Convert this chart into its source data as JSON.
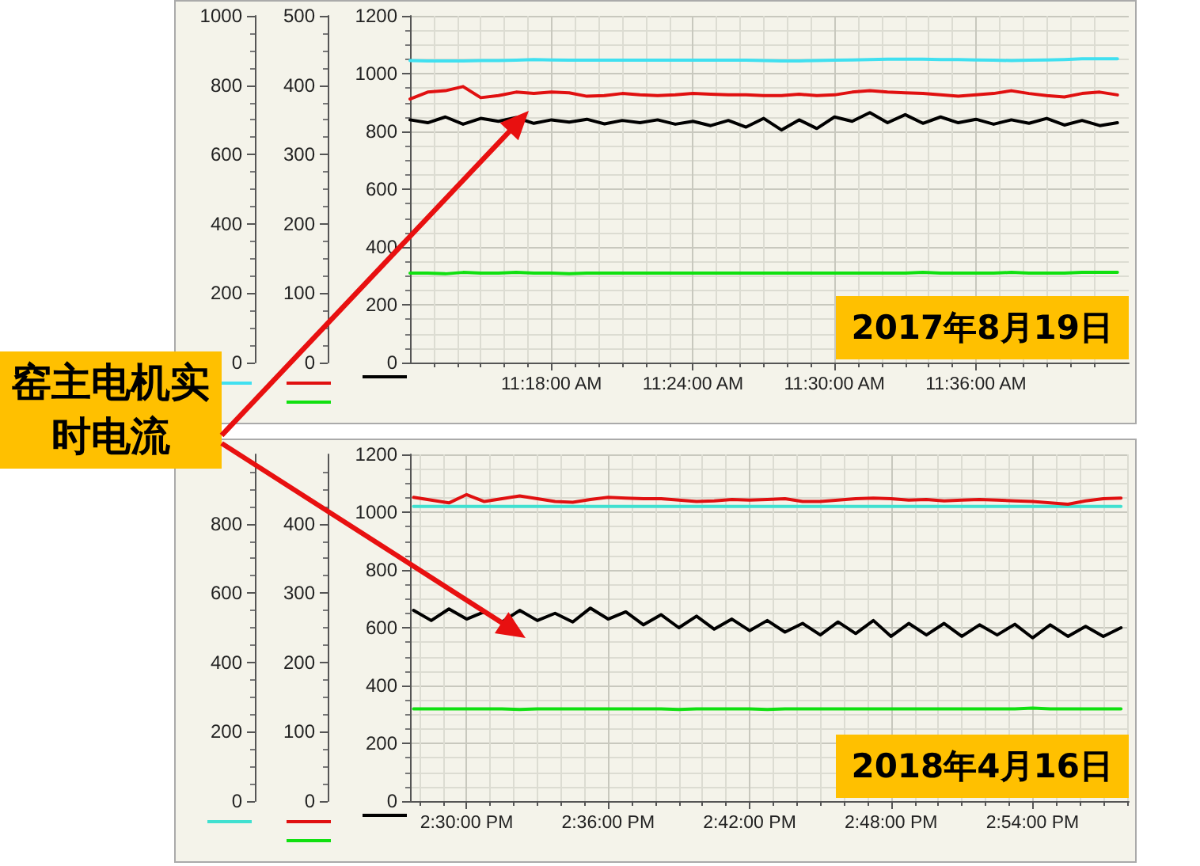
{
  "chart_data": [
    {
      "type": "line",
      "annotations": [
        "窑主电机实时电流",
        "2017年8月19日"
      ],
      "grid": true,
      "marker": "none",
      "line_style": "solid",
      "x": [
        11.2,
        11.2125,
        11.225,
        11.2375,
        11.25,
        11.2625,
        11.275,
        11.2875,
        11.3,
        11.3125,
        11.325,
        11.3375,
        11.35,
        11.3625,
        11.375,
        11.3875,
        11.4,
        11.4125,
        11.425,
        11.4375,
        11.45,
        11.4625,
        11.475,
        11.4875,
        11.5,
        11.5125,
        11.525,
        11.5375,
        11.55,
        11.5625,
        11.575,
        11.5875,
        11.6,
        11.6125,
        11.625,
        11.6375,
        11.65,
        11.6625,
        11.675,
        11.6875,
        11.7
      ],
      "xlim": [
        11.2,
        11.708
      ],
      "xticks": [
        {
          "value": 11.3,
          "label": "11:18:00 AM"
        },
        {
          "value": 11.4,
          "label": "11:24:00 AM"
        },
        {
          "value": 11.5,
          "label": "11:30:00 AM"
        },
        {
          "value": 11.6,
          "label": "11:36:00 AM"
        }
      ],
      "ylim": [
        0,
        1200
      ],
      "yticks": [
        0,
        200,
        400,
        600,
        800,
        1000,
        1200
      ],
      "y2lim": [
        0,
        500
      ],
      "y2ticks": [
        0,
        100,
        200,
        300,
        400,
        500
      ],
      "y3lim": [
        0,
        1000
      ],
      "y3ticks": [
        0,
        200,
        400,
        600,
        800,
        1000
      ],
      "series": [
        {
          "color": "#40e0f0",
          "axis": "y3",
          "values": [
            871,
            870,
            870,
            870,
            871,
            871,
            872,
            874,
            873,
            872,
            872,
            872,
            872,
            872,
            872,
            872,
            872,
            872,
            872,
            872,
            871,
            870,
            870,
            871,
            872,
            873,
            874,
            875,
            875,
            875,
            874,
            874,
            873,
            872,
            871,
            872,
            873,
            874,
            876,
            876,
            876
          ]
        },
        {
          "color": "#e01010",
          "axis": "y2",
          "values": [
            380,
            390,
            392,
            398,
            382,
            385,
            390,
            388,
            390,
            389,
            384,
            385,
            388,
            386,
            385,
            386,
            388,
            387,
            386,
            386,
            385,
            385,
            387,
            385,
            386,
            390,
            392,
            390,
            389,
            388,
            386,
            384,
            386,
            388,
            392,
            388,
            385,
            383,
            388,
            390,
            386
          ]
        },
        {
          "color": "#10e010",
          "axis": "y2",
          "values": [
            129,
            129,
            128,
            130,
            129,
            129,
            130,
            129,
            129,
            128,
            129,
            129,
            129,
            129,
            129,
            129,
            129,
            129,
            129,
            129,
            129,
            129,
            129,
            129,
            129,
            129,
            129,
            129,
            129,
            130,
            129,
            129,
            129,
            129,
            130,
            129,
            129,
            129,
            130,
            130,
            130
          ]
        },
        {
          "color": "#000000",
          "axis": "y",
          "values": [
            840,
            830,
            850,
            825,
            845,
            835,
            848,
            828,
            840,
            832,
            842,
            826,
            838,
            830,
            840,
            825,
            835,
            820,
            838,
            815,
            845,
            805,
            840,
            810,
            850,
            835,
            865,
            830,
            858,
            828,
            850,
            830,
            842,
            825,
            840,
            828,
            845,
            822,
            838,
            820,
            830
          ]
        }
      ]
    },
    {
      "type": "line",
      "annotations": [
        "2018年4月16日"
      ],
      "grid": true,
      "marker": "none",
      "line_style": "solid",
      "x": [
        14.4625,
        14.475,
        14.4875,
        14.5,
        14.5125,
        14.525,
        14.5375,
        14.55,
        14.5625,
        14.575,
        14.5875,
        14.6,
        14.6125,
        14.625,
        14.6375,
        14.65,
        14.6625,
        14.675,
        14.6875,
        14.7,
        14.7125,
        14.725,
        14.7375,
        14.75,
        14.7625,
        14.775,
        14.7875,
        14.8,
        14.8125,
        14.825,
        14.8375,
        14.85,
        14.8625,
        14.875,
        14.8875,
        14.9,
        14.9125,
        14.925,
        14.9375,
        14.95,
        14.9625
      ],
      "xlim": [
        14.46,
        14.968
      ],
      "xticks": [
        {
          "value": 14.5,
          "label": "2:30:00 PM"
        },
        {
          "value": 14.6,
          "label": "2:36:00 PM"
        },
        {
          "value": 14.7,
          "label": "2:42:00 PM"
        },
        {
          "value": 14.8,
          "label": "2:48:00 PM"
        },
        {
          "value": 14.9,
          "label": "2:54:00 PM"
        }
      ],
      "ylim": [
        0,
        1200
      ],
      "yticks": [
        0,
        200,
        400,
        600,
        800,
        1000,
        1200
      ],
      "y2lim": [
        0,
        500
      ],
      "y2ticks": [
        0,
        100,
        200,
        300,
        400
      ],
      "y3lim": [
        0,
        1000
      ],
      "y3ticks": [
        0,
        200,
        400,
        600,
        800
      ],
      "series": [
        {
          "color": "#40e0d0",
          "axis": "y3",
          "values": [
            850,
            850,
            850,
            850,
            850,
            850,
            850,
            850,
            850,
            850,
            850,
            850,
            850,
            850,
            850,
            850,
            850,
            850,
            850,
            850,
            850,
            850,
            850,
            850,
            850,
            850,
            850,
            850,
            850,
            850,
            850,
            850,
            850,
            850,
            850,
            850,
            850,
            850,
            850,
            850,
            850
          ]
        },
        {
          "color": "#e01010",
          "axis": "y2",
          "values": [
            438,
            434,
            430,
            442,
            432,
            436,
            440,
            436,
            432,
            431,
            435,
            438,
            437,
            436,
            436,
            434,
            432,
            433,
            435,
            434,
            435,
            436,
            432,
            432,
            434,
            436,
            437,
            436,
            434,
            435,
            433,
            434,
            435,
            434,
            433,
            432,
            430,
            428,
            433,
            436,
            437
          ]
        },
        {
          "color": "#10e010",
          "axis": "y2",
          "values": [
            133,
            133,
            133,
            133,
            133,
            133,
            132,
            133,
            133,
            133,
            133,
            133,
            133,
            133,
            133,
            132,
            133,
            133,
            133,
            133,
            132,
            133,
            133,
            133,
            133,
            133,
            133,
            133,
            133,
            133,
            133,
            133,
            133,
            133,
            133,
            134,
            133,
            133,
            133,
            133,
            133
          ]
        },
        {
          "color": "#000000",
          "axis": "y",
          "values": [
            660,
            625,
            665,
            630,
            655,
            620,
            660,
            625,
            650,
            620,
            668,
            630,
            655,
            610,
            645,
            600,
            640,
            595,
            630,
            590,
            625,
            585,
            615,
            575,
            620,
            580,
            625,
            570,
            615,
            575,
            615,
            570,
            610,
            575,
            612,
            565,
            610,
            570,
            605,
            570,
            600
          ]
        }
      ]
    }
  ]
}
